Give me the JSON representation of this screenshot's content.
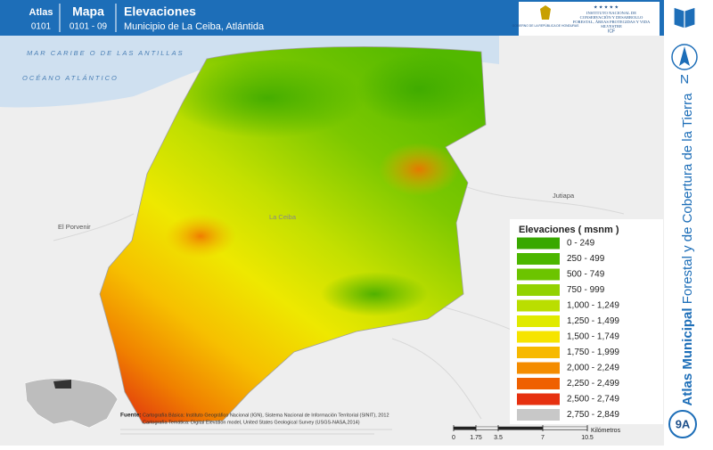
{
  "header": {
    "atlas_label": "Atlas",
    "atlas_code": "0101",
    "map_label": "Mapa",
    "map_code": "0101 - 09",
    "title": "Elevaciones",
    "subtitle": "Municipio de La Ceiba, Atlántida"
  },
  "logos": {
    "government": "GOBIERNO DE LA REPÚBLICA DE HONDURAS",
    "institute": "INSTITUTO NACIONAL DE CONSERVACIÓN Y DESARROLLO FORESTAL, ÁREAS PROTEGIDAS Y VIDA SILVESTRE",
    "institute_short": "ICF"
  },
  "sidebar": {
    "north": "N",
    "series_bold": "Atlas Municipal",
    "series_rest": "Forestal y de Cobertura de la Tierra",
    "sheet": "9A"
  },
  "map_labels": [
    {
      "text": "MAR CARIBE O DE LAS ANTILLAS",
      "kind": "sea"
    },
    {
      "text": "OCÉANO ATLÁNTICO",
      "kind": "sea"
    },
    {
      "text": "Jutiapa",
      "kind": "place"
    },
    {
      "text": "El Porvenir",
      "kind": "place"
    },
    {
      "text": "La Ceiba",
      "kind": "place"
    }
  ],
  "legend": {
    "title": "Elevaciones ( msnm )",
    "items": [
      {
        "label": "0 - 249",
        "color": "#38a800"
      },
      {
        "label": "250 - 499",
        "color": "#4cb600"
      },
      {
        "label": "500 - 749",
        "color": "#6cc400"
      },
      {
        "label": "750 - 999",
        "color": "#92d200"
      },
      {
        "label": "1,000 - 1,249",
        "color": "#bade00"
      },
      {
        "label": "1,250 - 1,499",
        "color": "#e0ea00"
      },
      {
        "label": "1,500 - 1,749",
        "color": "#f6e400"
      },
      {
        "label": "1,750 - 1,999",
        "color": "#f7b900"
      },
      {
        "label": "2,000 - 2,249",
        "color": "#f48c00"
      },
      {
        "label": "2,250 - 2,499",
        "color": "#ef6000"
      },
      {
        "label": "2,500 - 2,749",
        "color": "#e6300f"
      },
      {
        "label": "2,750 - 2,849",
        "color": "#c8c8c8"
      }
    ]
  },
  "source": {
    "label": "Fuente:",
    "lines": [
      "Cartografía Básica: Instituto Geográfico Nacional (IGN), Sistema Nacional de Información Territorial (SINIT), 2012",
      "Cartografía Temática: Digital Elevation model, United States Geological Survey (USGS-NASA,2014)"
    ]
  },
  "scale": {
    "ticks": [
      "0",
      "1.75",
      "3.5",
      "7",
      "10.5"
    ],
    "unit": "Kilómetros"
  }
}
